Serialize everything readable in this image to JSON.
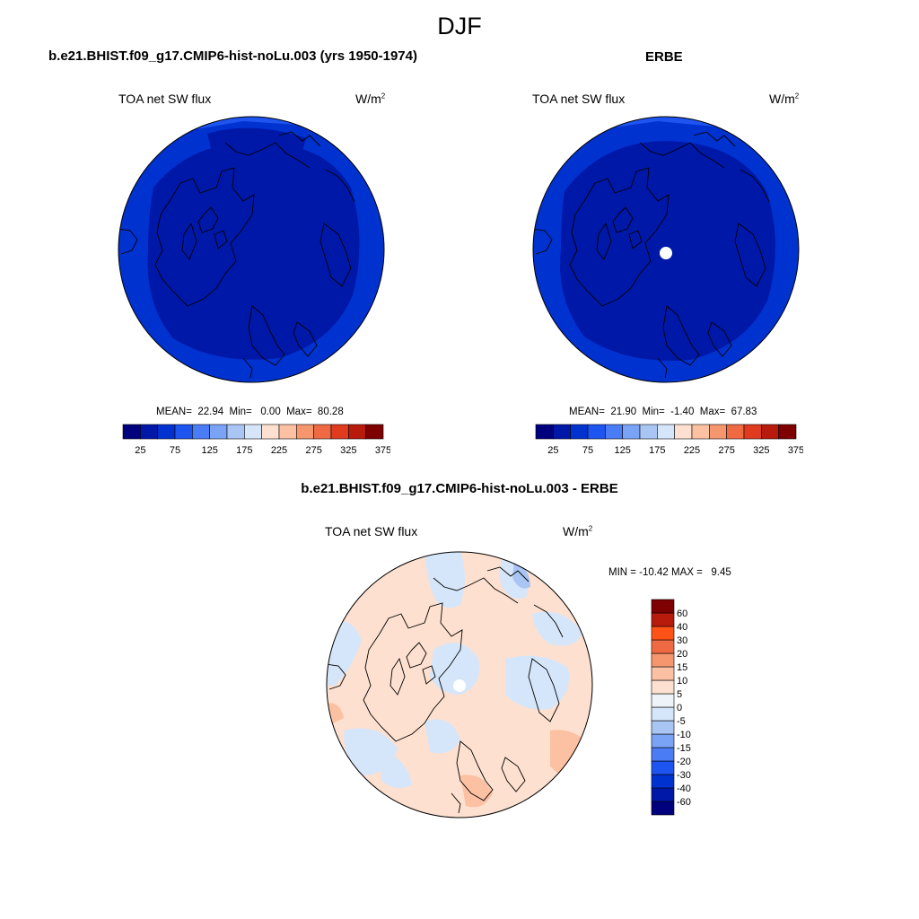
{
  "figure": {
    "season": "DJF",
    "model_title": "b.e21.BHIST.f09_g17.CMIP6-hist-noLu.003 (yrs 1950-1974)",
    "obs_title": "ERBE",
    "diff_title": "b.e21.BHIST.f09_g17.CMIP6-hist-noLu.003 - ERBE"
  },
  "panels": {
    "model": {
      "variable": "TOA net SW flux",
      "units_base": "W/m",
      "units_exp": "2",
      "stats": "MEAN=  22.94  Min=   0.00  Max=  80.28"
    },
    "obs": {
      "variable": "TOA net SW flux",
      "units_base": "W/m",
      "units_exp": "2",
      "stats": "MEAN=  21.90  Min=  -1.40  Max=  67.83"
    },
    "diff": {
      "variable": "TOA net SW flux",
      "units_base": "W/m",
      "units_exp": "2",
      "stats": "MIN = -10.42 MAX =   9.45"
    }
  },
  "colorbars": {
    "abs": {
      "colors": [
        "#00007f",
        "#0018a8",
        "#0032d0",
        "#1e54f0",
        "#4a7cf6",
        "#7aa2f5",
        "#a9c5f4",
        "#d6e6fa",
        "#fde0cf",
        "#fbc1a2",
        "#f6966e",
        "#ef6a43",
        "#e03a1f",
        "#b81a0c",
        "#7f0000"
      ],
      "labels": [
        "25",
        "75",
        "125",
        "175",
        "225",
        "275",
        "325",
        "375"
      ]
    },
    "diff": {
      "colors": [
        "#00007f",
        "#0018a8",
        "#0032d0",
        "#1e54f0",
        "#4a7cf6",
        "#7aa2f5",
        "#a9c5f4",
        "#d6e6fa",
        "#eef3f9",
        "#fde0cf",
        "#fbc1a2",
        "#f6966e",
        "#ef6a43",
        "#ff5216",
        "#b81a0c",
        "#7f0000"
      ],
      "labels": [
        "60",
        "40",
        "30",
        "20",
        "15",
        "10",
        "5",
        "0",
        "-5",
        "-10",
        "-15",
        "-20",
        "-30",
        "-40",
        "-60"
      ]
    }
  }
}
